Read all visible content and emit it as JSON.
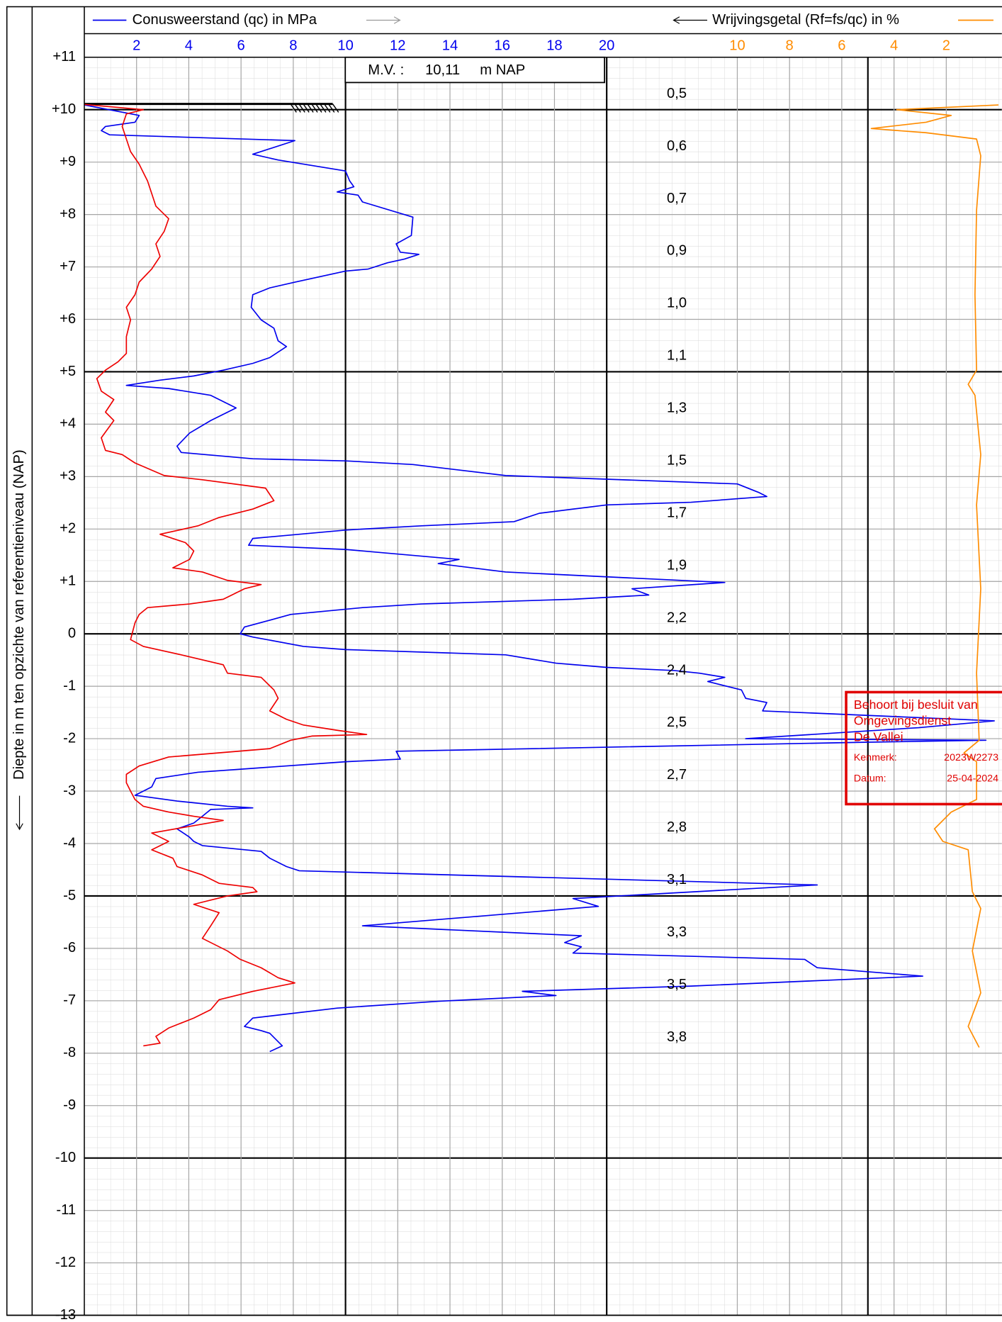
{
  "chart_data": {
    "type": "cpt",
    "y_label": "Diepte in m ten opzichte van referentieniveau (NAP)",
    "xlim": [
      0,
      35
    ],
    "xticks": [
      2,
      4,
      6,
      8,
      10,
      12,
      14,
      16,
      18,
      20
    ],
    "x2lim": [
      35,
      0
    ],
    "x2ticks": [
      10,
      8,
      6,
      4,
      2
    ],
    "ylim": [
      -13,
      11
    ],
    "yticks": [
      {
        "value": 11,
        "label": "+11"
      },
      {
        "value": 10,
        "label": "+10"
      },
      {
        "value": 9,
        "label": "+9"
      },
      {
        "value": 8,
        "label": "+8"
      },
      {
        "value": 7,
        "label": "+7"
      },
      {
        "value": 6,
        "label": "+6"
      },
      {
        "value": 5,
        "label": "+5"
      },
      {
        "value": 4,
        "label": "+4"
      },
      {
        "value": 3,
        "label": "+3"
      },
      {
        "value": 2,
        "label": "+2"
      },
      {
        "value": 1,
        "label": "+1"
      },
      0,
      -1,
      -2,
      -3,
      -4,
      -5,
      -6,
      -7,
      -8,
      -9,
      -10,
      -11,
      -12,
      -13
    ],
    "bold_x": [
      10,
      20
    ],
    "bold_x2": [
      5
    ],
    "bold_y": [
      10,
      5,
      0,
      -5,
      -10
    ],
    "grid": true,
    "surface_level": {
      "label": "M.V. :",
      "value_label": "10,11",
      "unit": "m NAP",
      "value": 10.11
    },
    "annotations": [
      {
        "depth": 10.3,
        "text": "0,5"
      },
      {
        "depth": 9.3,
        "text": "0,6"
      },
      {
        "depth": 8.3,
        "text": "0,7"
      },
      {
        "depth": 7.3,
        "text": "0,9"
      },
      {
        "depth": 6.3,
        "text": "1,0"
      },
      {
        "depth": 5.3,
        "text": "1,1"
      },
      {
        "depth": 4.3,
        "text": "1,3"
      },
      {
        "depth": 3.3,
        "text": "1,5"
      },
      {
        "depth": 2.3,
        "text": "1,7"
      },
      {
        "depth": 1.3,
        "text": "1,9"
      },
      {
        "depth": 0.3,
        "text": "2,2"
      },
      {
        "depth": -0.7,
        "text": "2,4"
      },
      {
        "depth": -1.7,
        "text": "2,5"
      },
      {
        "depth": -2.7,
        "text": "2,7"
      },
      {
        "depth": -3.7,
        "text": "2,8"
      },
      {
        "depth": -4.7,
        "text": "3,1"
      },
      {
        "depth": -5.7,
        "text": "3,3"
      },
      {
        "depth": -6.7,
        "text": "3,5"
      },
      {
        "depth": -7.7,
        "text": "3,8"
      }
    ],
    "series": [
      {
        "name": "Conusweerstand (qc) in MPa",
        "color": "#0000ee",
        "axis": "x",
        "depth": [
          10.09,
          9.89,
          9.76,
          9.68,
          9.6,
          9.52,
          9.41,
          9.15,
          9.04,
          8.83,
          8.64,
          8.53,
          8.43,
          8.37,
          8.24,
          7.95,
          7.6,
          7.44,
          7.28,
          7.24,
          7.15,
          7.08,
          6.96,
          6.92,
          6.71,
          6.6,
          6.47,
          6.23,
          5.99,
          5.83,
          5.59,
          5.48,
          5.27,
          5.16,
          5.03,
          4.92,
          4.84,
          4.74,
          4.68,
          4.55,
          4.31,
          4.07,
          3.83,
          3.58,
          3.46,
          3.34,
          3.3,
          3.23,
          3.02,
          2.86,
          2.7,
          2.62,
          2.51,
          2.46,
          2.3,
          2.14,
          2.06,
          1.98,
          1.82,
          1.69,
          1.61,
          1.42,
          1.34,
          1.18,
          0.98,
          0.86,
          0.74,
          0.66,
          0.57,
          0.5,
          0.37,
          0.26,
          0.13,
          0,
          -0.06,
          -0.24,
          -0.3,
          -0.4,
          -0.56,
          -0.64,
          -0.7,
          -0.75,
          -0.83,
          -0.91,
          -1.07,
          -1.23,
          -1.31,
          -1.47,
          -1.66,
          -1.79,
          -2,
          -2.03,
          -2.07,
          -2.24,
          -2.39,
          -2.44,
          -2.64,
          -2.76,
          -2.92,
          -3.08,
          -3.19,
          -3.29,
          -3.32,
          -3.35,
          -3.48,
          -3.61,
          -3.72,
          -3.88,
          -3.96,
          -4.04,
          -4.15,
          -4.28,
          -4.44,
          -4.52,
          -4.79,
          -5.05,
          -5.2,
          -5.57,
          -5.76,
          -5.89,
          -5.97,
          -6.09,
          -6.21,
          -6.37,
          -6.53,
          -6.72,
          -6.82,
          -6.9,
          -7.01,
          -7.14,
          -7.33,
          -7.49,
          -7.57,
          -7.62,
          -7.86,
          -7.97
        ],
        "values": [
          0,
          2.1,
          1.94,
          0.81,
          0.65,
          0.97,
          8.06,
          6.45,
          7.42,
          10,
          10.16,
          10.32,
          9.68,
          10.48,
          10.65,
          12.58,
          12.52,
          11.94,
          12.1,
          12.81,
          12.26,
          11.61,
          10.87,
          10,
          8.06,
          7.1,
          6.45,
          6.39,
          6.77,
          7.26,
          7.42,
          7.74,
          7.1,
          6.45,
          5.32,
          4.19,
          2.9,
          1.61,
          3.23,
          4.84,
          5.81,
          4.84,
          4.03,
          3.55,
          3.71,
          6.45,
          10,
          12.58,
          16.13,
          25,
          25.81,
          26.13,
          23.23,
          20,
          17.42,
          16.45,
          12.9,
          10,
          6.45,
          6.29,
          10,
          14.35,
          13.55,
          16.13,
          24.52,
          20.97,
          21.61,
          18.71,
          12.9,
          10.65,
          7.9,
          7.1,
          6.13,
          5.97,
          6.45,
          8.39,
          10,
          16.13,
          18.06,
          20,
          22.58,
          23.55,
          24.52,
          23.87,
          25.16,
          25.32,
          26.13,
          25.97,
          34.84,
          31.94,
          25.32,
          34.52,
          29.68,
          11.94,
          12.1,
          10,
          4.35,
          2.74,
          2.58,
          1.94,
          3.55,
          5.48,
          6.45,
          4.84,
          4.52,
          4.19,
          3.55,
          4.03,
          4.19,
          4.52,
          6.77,
          7.1,
          7.74,
          8.23,
          28.06,
          18.71,
          19.68,
          10.65,
          19.03,
          18.39,
          19.03,
          18.71,
          27.58,
          28.06,
          32.1,
          23.23,
          16.77,
          18.06,
          13.55,
          9.68,
          6.45,
          6.13,
          6.77,
          7.1,
          7.58,
          7.1
        ]
      },
      {
        "color": "#ee0000",
        "axis": "x",
        "depth": [
          10.1,
          10,
          9.92,
          9.68,
          9.44,
          9.2,
          8.96,
          8.8,
          8.64,
          8.4,
          8.16,
          7.92,
          7.68,
          7.44,
          7.2,
          6.96,
          6.71,
          6.47,
          6.23,
          5.99,
          5.67,
          5.35,
          5.19,
          5.03,
          4.87,
          4.63,
          4.47,
          4.23,
          4.07,
          3.74,
          3.5,
          3.42,
          3.26,
          3.02,
          2.94,
          2.78,
          2.54,
          2.38,
          2.22,
          2.06,
          1.9,
          1.74,
          1.58,
          1.42,
          1.26,
          1.18,
          1.02,
          0.94,
          0.86,
          0.66,
          0.57,
          0.5,
          0.37,
          0.21,
          -0.11,
          -0.24,
          -0.4,
          -0.59,
          -0.75,
          -0.83,
          -1.07,
          -1.23,
          -1.47,
          -1.63,
          -1.74,
          -1.84,
          -1.92,
          -1.95,
          -2.03,
          -2.19,
          -2.35,
          -2.52,
          -2.68,
          -2.84,
          -3,
          -3.16,
          -3.29,
          -3.4,
          -3.48,
          -3.56,
          -3.8,
          -3.96,
          -4.12,
          -4.28,
          -4.44,
          -4.6,
          -4.76,
          -4.84,
          -4.92,
          -5,
          -5.16,
          -5.32,
          -5.57,
          -5.81,
          -6.05,
          -6.21,
          -6.37,
          -6.56,
          -6.66,
          -6.82,
          -6.98,
          -7.17,
          -7.33,
          -7.52,
          -7.68,
          -7.81,
          -7.86
        ],
        "values": [
          0,
          2.26,
          1.61,
          1.45,
          1.61,
          1.77,
          2.1,
          2.26,
          2.42,
          2.58,
          2.74,
          3.23,
          3.06,
          2.74,
          2.9,
          2.58,
          2.1,
          1.94,
          1.61,
          1.77,
          1.61,
          1.61,
          1.29,
          0.81,
          0.48,
          0.65,
          1.13,
          0.81,
          1.13,
          0.65,
          0.81,
          1.45,
          1.94,
          3.06,
          4.52,
          6.94,
          7.26,
          6.45,
          5.16,
          4.35,
          2.9,
          3.87,
          4.19,
          4.03,
          3.39,
          4.52,
          5.48,
          6.77,
          6.13,
          5.32,
          4.03,
          2.42,
          2.1,
          1.94,
          1.77,
          2.26,
          3.71,
          5.32,
          5.48,
          6.77,
          7.26,
          7.42,
          7.1,
          7.74,
          8.39,
          9.68,
          10.81,
          8.71,
          7.9,
          7.1,
          3.23,
          2.1,
          1.61,
          1.61,
          1.77,
          1.94,
          2.26,
          3.23,
          4.19,
          5.32,
          2.58,
          3.23,
          2.58,
          3.39,
          3.55,
          4.52,
          5.16,
          6.45,
          6.61,
          5.48,
          4.19,
          5.16,
          4.84,
          4.52,
          5.48,
          5.97,
          6.77,
          7.42,
          8.06,
          6.45,
          5.16,
          4.84,
          4.19,
          3.23,
          2.74,
          2.9,
          2.26
        ]
      },
      {
        "name": "Wrijvingsgetal (Rf=fs/qc) in %",
        "color": "#ff8c00",
        "axis": "x2",
        "depth": [
          10.09,
          10,
          9.89,
          9.76,
          9.64,
          9.56,
          9.44,
          9.12,
          8.08,
          6.47,
          5.03,
          4.76,
          4.55,
          3.42,
          2.46,
          0.86,
          -0.75,
          -2.03,
          -2.27,
          -2.44,
          -3.16,
          -3.4,
          -3.72,
          -3.96,
          -4.12,
          -4.92,
          -5.24,
          -6.05,
          -6.85,
          -7.49,
          -7.89
        ],
        "values": [
          0,
          3.9,
          1.81,
          2.77,
          4.87,
          2.77,
          0.84,
          0.68,
          0.84,
          0.9,
          0.84,
          1.16,
          0.9,
          0.68,
          0.84,
          0.68,
          0.84,
          0.74,
          1.32,
          0.84,
          0.84,
          1.81,
          2.45,
          2.13,
          1.16,
          1,
          0.68,
          1,
          0.68,
          1.16,
          0.74
        ]
      }
    ],
    "stamp": {
      "line1": "Behoort bij besluit van",
      "line2": "Omgevingsdienst",
      "line3": "De Vallei",
      "ref_label": "Kenmerk:",
      "ref": "2023W2273",
      "date_label": "Datum:",
      "date": "25-04-2024"
    }
  }
}
